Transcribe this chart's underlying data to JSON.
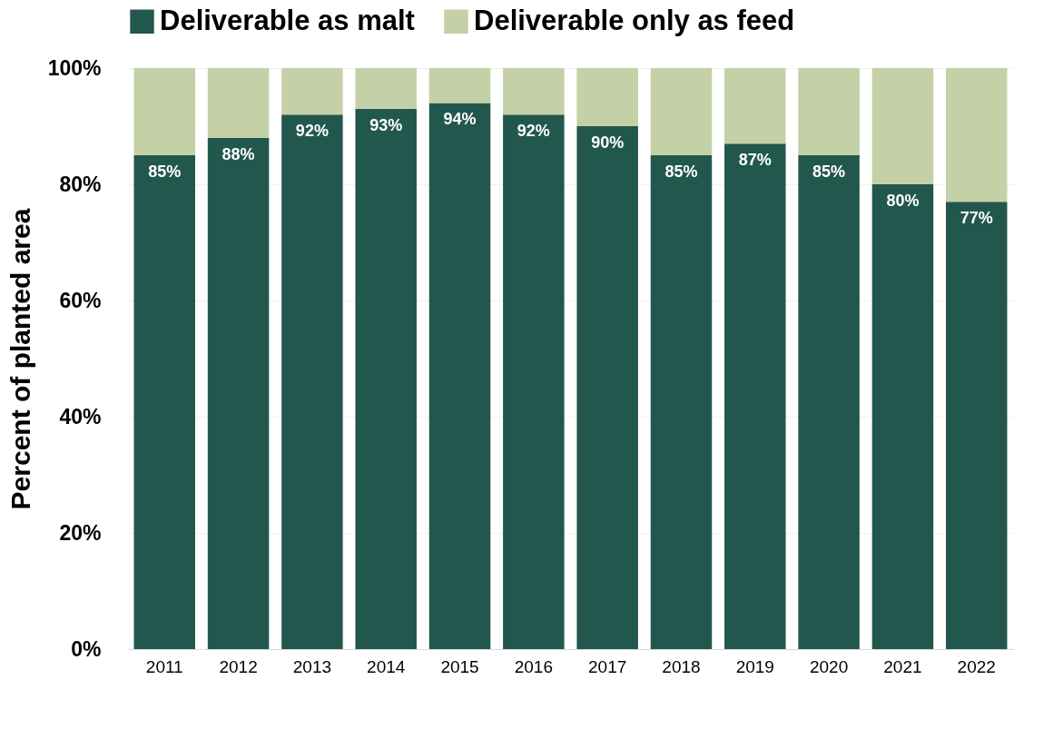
{
  "chart_data": {
    "type": "bar",
    "stacked": true,
    "ylabel": "Percent of planted area",
    "categories": [
      "2011",
      "2012",
      "2013",
      "2014",
      "2015",
      "2016",
      "2017",
      "2018",
      "2019",
      "2020",
      "2021",
      "2022"
    ],
    "series": [
      {
        "name": "Deliverable as malt",
        "color": "#22574d",
        "values": [
          85,
          88,
          92,
          93,
          94,
          92,
          90,
          85,
          87,
          85,
          80,
          77
        ],
        "value_labels": [
          "85%",
          "88%",
          "92%",
          "93%",
          "94%",
          "92%",
          "90%",
          "85%",
          "87%",
          "85%",
          "80%",
          "77%"
        ]
      },
      {
        "name": "Deliverable only as feed",
        "color": "#c4d0a6",
        "values": [
          15,
          12,
          8,
          7,
          6,
          8,
          10,
          15,
          13,
          15,
          20,
          23
        ]
      }
    ],
    "ylim": [
      0,
      100
    ],
    "yticks": [
      {
        "value": 0,
        "label": "0%"
      },
      {
        "value": 20,
        "label": "20%"
      },
      {
        "value": 40,
        "label": "40%"
      },
      {
        "value": 60,
        "label": "60%"
      },
      {
        "value": 80,
        "label": "80%"
      },
      {
        "value": 100,
        "label": "100%"
      }
    ],
    "grid": "y",
    "legend": "top"
  }
}
